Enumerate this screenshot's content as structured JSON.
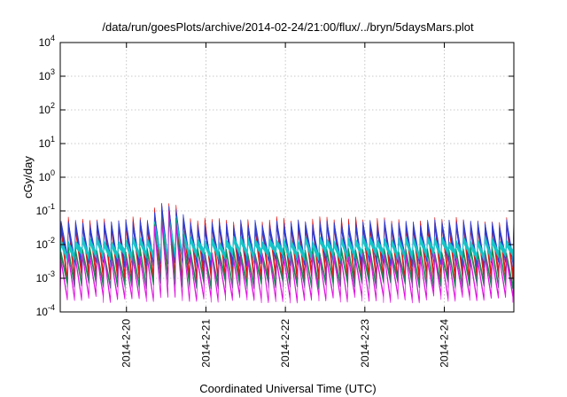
{
  "chart_data": {
    "type": "area",
    "title": "/data/run/goesPlots/archive/2014-02-24/21:00/flux/../bryn/5daysMars.plot",
    "xlabel": "Coordinated Universal Time (UTC)",
    "ylabel": "cGy/day",
    "yscale": "log",
    "ylim": [
      0.0001,
      10000
    ],
    "xlim": [
      "2014-02-19T04:00",
      "2014-02-24T21:00"
    ],
    "y_ticks": [
      {
        "base": "10",
        "exp": "-4"
      },
      {
        "base": "10",
        "exp": "-3"
      },
      {
        "base": "10",
        "exp": "-2"
      },
      {
        "base": "10",
        "exp": "-1"
      },
      {
        "base": "10",
        "exp": "0"
      },
      {
        "base": "10",
        "exp": "1"
      },
      {
        "base": "10",
        "exp": "2"
      },
      {
        "base": "10",
        "exp": "3"
      },
      {
        "base": "10",
        "exp": "4"
      }
    ],
    "x_ticks": [
      "2014-2-20",
      "2014-2-21",
      "2014-2-22",
      "2014-2-23",
      "2014-2-24"
    ],
    "grid": true,
    "legend": "none",
    "pattern": {
      "cycle_hours": 2.17,
      "spike_time": "2014-02-20T12:00",
      "spike_peak": 0.18
    },
    "series": [
      {
        "color": "#e01010",
        "peak": 0.055,
        "trough": 0.0016
      },
      {
        "color": "#2a3fd6",
        "peak": 0.045,
        "trough": 0.0045
      },
      {
        "color": "#10c8c8",
        "peak": 0.015,
        "trough": 0.0065
      },
      {
        "color": "#108a50",
        "peak": 0.007,
        "trough": 0.0009
      },
      {
        "color": "#e010e0",
        "peak": 0.0045,
        "trough": 0.00032
      }
    ]
  }
}
